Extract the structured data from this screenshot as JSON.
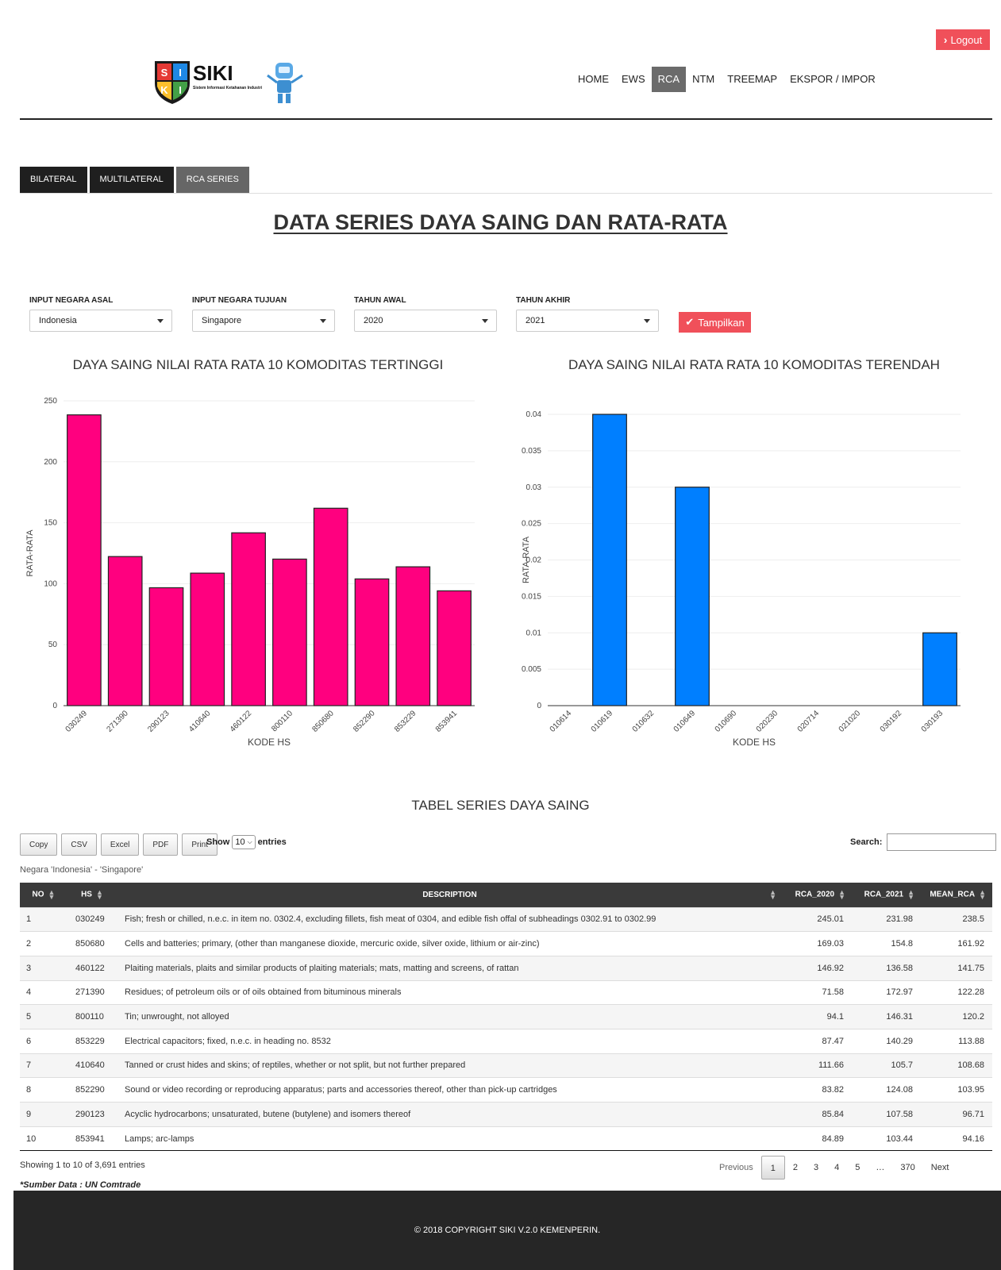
{
  "header": {
    "logout_label": "Logout",
    "brand": {
      "name": "SIKI",
      "tagline": "Sistem Informasi Ketahanan Industri",
      "shield_letters": [
        "S",
        "I",
        "K",
        "I"
      ]
    },
    "nav": [
      {
        "label": "HOME",
        "active": false
      },
      {
        "label": "EWS",
        "active": false
      },
      {
        "label": "RCA",
        "active": true
      },
      {
        "label": "NTM",
        "active": false
      },
      {
        "label": "TREEMAP",
        "active": false
      },
      {
        "label": "EKSPOR / IMPOR",
        "active": false
      }
    ]
  },
  "subtabs": [
    {
      "label": "BILATERAL",
      "active": false
    },
    {
      "label": "MULTILATERAL",
      "active": false
    },
    {
      "label": "RCA SERIES",
      "active": true
    }
  ],
  "page_title": "DATA SERIES DAYA SAING DAN RATA-RATA",
  "filters": {
    "negara_asal": {
      "label": "INPUT NEGARA ASAL",
      "value": "Indonesia"
    },
    "negara_tujuan": {
      "label": "INPUT NEGARA TUJUAN",
      "value": "Singapore"
    },
    "tahun_awal": {
      "label": "TAHUN AWAL",
      "value": "2020"
    },
    "tahun_akhir": {
      "label": "TAHUN AKHIR",
      "value": "2021"
    },
    "submit_label": "Tampilkan"
  },
  "chart_data": [
    {
      "type": "bar",
      "title": "DAYA SAING NILAI RATA RATA 10 KOMODITAS TERTINGGI",
      "xlabel": "KODE HS",
      "ylabel": "RATA-RATA",
      "ylim": [
        0,
        250
      ],
      "yticks": [
        0,
        50,
        100,
        150,
        200,
        250
      ],
      "categories": [
        "030249",
        "271390",
        "290123",
        "410640",
        "460122",
        "800110",
        "850680",
        "852290",
        "853229",
        "853941"
      ],
      "values": [
        238.5,
        122.28,
        96.71,
        108.68,
        141.75,
        120.2,
        161.92,
        103.95,
        113.88,
        94.16
      ],
      "color": "#ff007f",
      "grid": true
    },
    {
      "type": "bar",
      "title": "DAYA SAING NILAI RATA RATA 10 KOMODITAS TERENDAH",
      "xlabel": "KODE HS",
      "ylabel": "RATA-RATA",
      "ylim": [
        0,
        0.04
      ],
      "yticks": [
        0,
        0.005,
        0.01,
        0.015,
        0.02,
        0.025,
        0.03,
        0.035,
        0.04
      ],
      "categories": [
        "010614",
        "010619",
        "010632",
        "010649",
        "010690",
        "020230",
        "020714",
        "021020",
        "030192",
        "030193"
      ],
      "values": [
        0,
        0.04,
        0,
        0.03,
        0,
        0,
        0,
        0,
        0,
        0.01
      ],
      "color": "#007fff",
      "grid": true
    }
  ],
  "table": {
    "title": "TABEL SERIES DAYA SAING",
    "buttons": [
      "Copy",
      "CSV",
      "Excel",
      "PDF",
      "Print"
    ],
    "show_label": "Show",
    "entries_label": "entries",
    "length_value": "10",
    "search_label": "Search:",
    "caption": "Negara 'Indonesia' - 'Singapore'",
    "columns": [
      "NO",
      "HS",
      "DESCRIPTION",
      "RCA_2020",
      "RCA_2021",
      "MEAN_RCA"
    ],
    "rows": [
      [
        "1",
        "030249",
        "Fish; fresh or chilled, n.e.c. in item no. 0302.4, excluding fillets, fish meat of 0304, and edible fish offal of subheadings 0302.91 to 0302.99",
        "245.01",
        "231.98",
        "238.5"
      ],
      [
        "2",
        "850680",
        "Cells and batteries; primary, (other than manganese dioxide, mercuric oxide, silver oxide, lithium or air-zinc)",
        "169.03",
        "154.8",
        "161.92"
      ],
      [
        "3",
        "460122",
        "Plaiting materials, plaits and similar products of plaiting materials; mats, matting and screens, of rattan",
        "146.92",
        "136.58",
        "141.75"
      ],
      [
        "4",
        "271390",
        "Residues; of petroleum oils or of oils obtained from bituminous minerals",
        "71.58",
        "172.97",
        "122.28"
      ],
      [
        "5",
        "800110",
        "Tin; unwrought, not alloyed",
        "94.1",
        "146.31",
        "120.2"
      ],
      [
        "6",
        "853229",
        "Electrical capacitors; fixed, n.e.c. in heading no. 8532",
        "87.47",
        "140.29",
        "113.88"
      ],
      [
        "7",
        "410640",
        "Tanned or crust hides and skins; of reptiles, whether or not split, but not further prepared",
        "111.66",
        "105.7",
        "108.68"
      ],
      [
        "8",
        "852290",
        "Sound or video recording or reproducing apparatus; parts and accessories thereof, other than pick-up cartridges",
        "83.82",
        "124.08",
        "103.95"
      ],
      [
        "9",
        "290123",
        "Acyclic hydrocarbons; unsaturated, butene (butylene) and isomers thereof",
        "85.84",
        "107.58",
        "96.71"
      ],
      [
        "10",
        "853941",
        "Lamps; arc-lamps",
        "84.89",
        "103.44",
        "94.16"
      ]
    ],
    "info": "Showing 1 to 10 of 3,691 entries",
    "pager": {
      "previous": "Previous",
      "pages": [
        "1",
        "2",
        "3",
        "4",
        "5"
      ],
      "ellipsis": "…",
      "last": "370",
      "next": "Next",
      "current": "1"
    },
    "source": "*Sumber Data : UN Comtrade"
  },
  "footer": {
    "copyright": "© 2018 COPYRIGHT SIKI V.2.0 KEMENPERIN."
  }
}
